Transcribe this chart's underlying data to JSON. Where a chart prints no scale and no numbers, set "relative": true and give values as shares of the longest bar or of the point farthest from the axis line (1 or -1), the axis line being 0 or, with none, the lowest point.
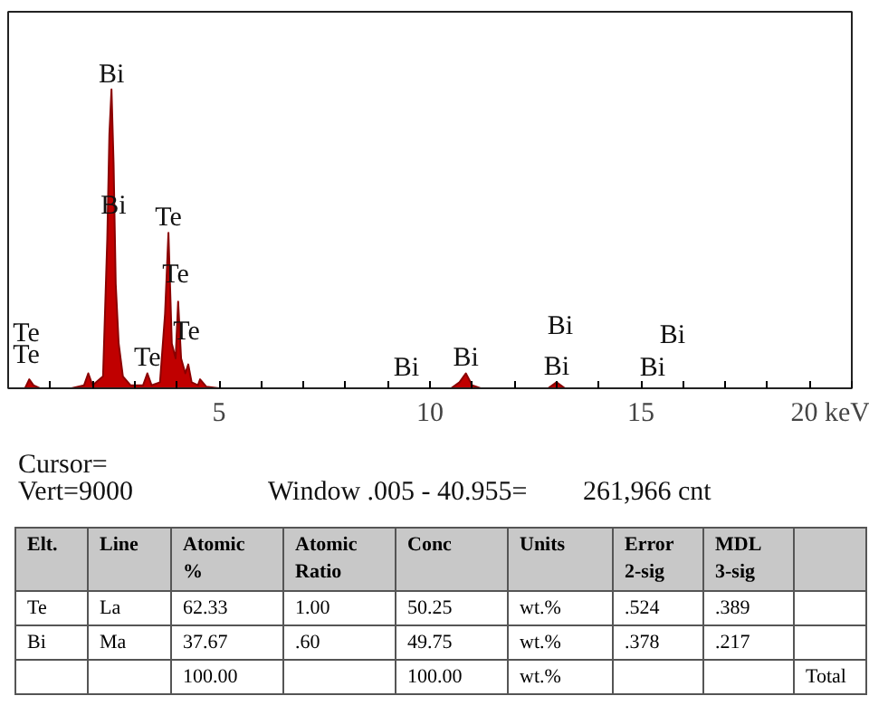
{
  "chart_data": {
    "type": "area",
    "relative": true,
    "color": "#c00000",
    "xlim": [
      0,
      20
    ],
    "xticks": [
      {
        "value": 1,
        "label": null
      },
      {
        "value": 2,
        "label": null
      },
      {
        "value": 3,
        "label": null
      },
      {
        "value": 4,
        "label": null
      },
      5,
      {
        "value": 6,
        "label": null
      },
      {
        "value": 7,
        "label": null
      },
      {
        "value": 8,
        "label": null
      },
      {
        "value": 9,
        "label": null
      },
      10,
      {
        "value": 11,
        "label": null
      },
      {
        "value": 12,
        "label": null
      },
      {
        "value": 13,
        "label": null
      },
      {
        "value": 14,
        "label": null
      },
      15,
      {
        "value": 16,
        "label": null
      },
      {
        "value": 17,
        "label": null
      },
      {
        "value": 18,
        "label": null
      },
      {
        "value": 19,
        "label": null
      },
      {
        "value": 20,
        "label": "20 keV"
      }
    ],
    "x": [
      0,
      0.4,
      0.5,
      0.6,
      0.75,
      1.5,
      1.8,
      1.9,
      2.0,
      2.25,
      2.35,
      2.4,
      2.45,
      2.5,
      2.55,
      2.62,
      2.72,
      2.9,
      3.2,
      3.3,
      3.4,
      3.6,
      3.72,
      3.8,
      3.88,
      3.97,
      4.03,
      4.1,
      4.2,
      4.27,
      4.35,
      4.5,
      4.55,
      4.7,
      5.0,
      10.5,
      10.7,
      10.85,
      11.0,
      11.2,
      12.8,
      13.0,
      13.2,
      20
    ],
    "values": [
      0,
      0,
      0.03,
      0.01,
      0,
      0,
      0.01,
      0.05,
      0.01,
      0.04,
      0.5,
      0.85,
      1.0,
      0.75,
      0.35,
      0.15,
      0.04,
      0.01,
      0.01,
      0.05,
      0.01,
      0.02,
      0.25,
      0.52,
      0.15,
      0.1,
      0.29,
      0.1,
      0.05,
      0.08,
      0.02,
      0.01,
      0.03,
      0.005,
      0,
      0,
      0.02,
      0.05,
      0.01,
      0,
      0,
      0.02,
      0,
      0
    ],
    "grid": false,
    "annotations": [
      {
        "text": "Bi",
        "x": 2.45,
        "y": 1.0
      },
      {
        "text": "Bi",
        "x": 2.5,
        "y": 0.56
      },
      {
        "text": "Te",
        "x": 3.8,
        "y": 0.52
      },
      {
        "text": "Te",
        "x": 3.97,
        "y": 0.33
      },
      {
        "text": "Te",
        "x": 4.23,
        "y": 0.14
      },
      {
        "text": "Te",
        "x": 0.43,
        "y": 0.06
      },
      {
        "text": "Te",
        "x": 3.3,
        "y": 0.05
      },
      {
        "text": "Bi",
        "x": 10.85,
        "y": 0.05
      },
      {
        "text": "Bi",
        "x": 13.0,
        "y": 0.02
      },
      "Te",
      "Bi",
      "Bi",
      "Bi",
      "Bi",
      "Cursor=",
      "Vert=9000",
      "Window .005 - 40.955=",
      "261,966 cnt",
      "Elt.",
      "Line",
      "Atomic\n%",
      "Atomic\nRatio",
      "Conc",
      "Units",
      "Error\n2-sig",
      "MDL\n3-sig",
      null,
      "Te",
      "La",
      "62.33",
      "1.00",
      "50.25",
      "wt.%",
      ".524",
      ".389",
      null,
      "Bi",
      "Ma",
      "37.67",
      ".60",
      "49.75",
      "wt.%",
      ".378",
      ".217",
      null,
      null,
      null,
      "100.00",
      null,
      "100.00",
      "wt.%",
      null,
      null,
      "Total"
    ]
  }
}
